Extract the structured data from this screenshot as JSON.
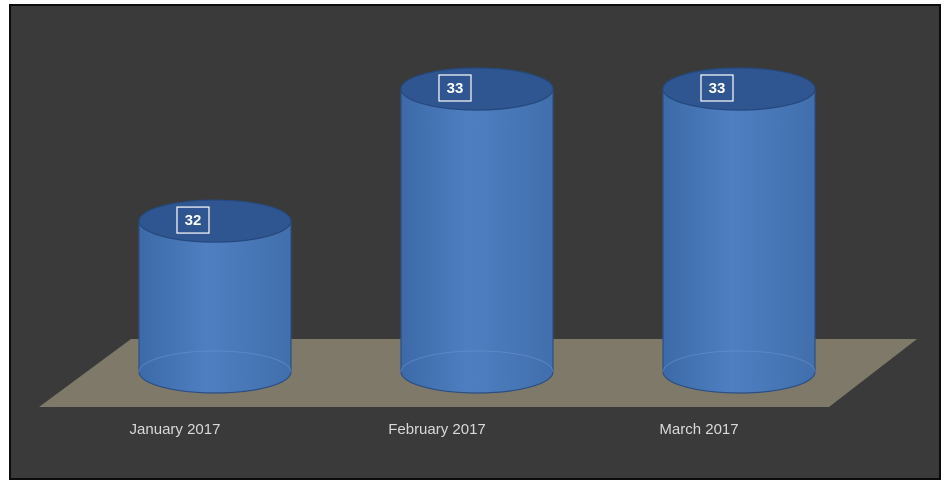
{
  "chart_data": {
    "type": "bar",
    "subtype": "3d-cylinder",
    "categories": [
      "January 2017",
      "February 2017",
      "March 2017"
    ],
    "values": [
      32,
      33,
      33
    ],
    "data_labels": [
      "32",
      "33",
      "33"
    ],
    "title": "",
    "xlabel": "",
    "ylabel": "",
    "grid": false,
    "legend": "none",
    "colors": {
      "background": "#3a3a3a",
      "floor": "#7f7969",
      "bar": "#4f7fc1",
      "bar_top": "#2f5690",
      "label_text": "#d9d9d9"
    }
  }
}
